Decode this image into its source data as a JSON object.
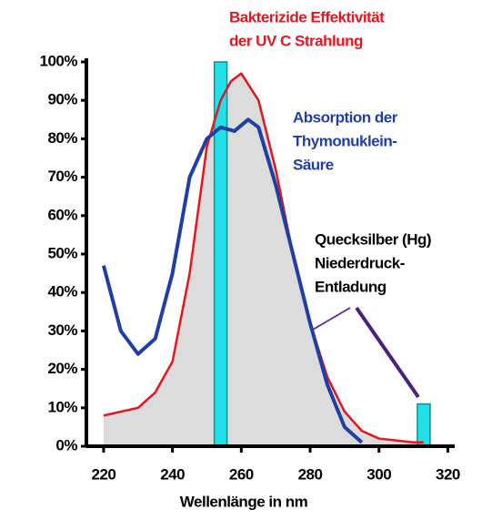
{
  "chart_data": {
    "type": "line",
    "xlabel": "Wellenlänge in nm",
    "xlim": [
      215,
      322
    ],
    "xticks": [
      220,
      240,
      260,
      280,
      300,
      320
    ],
    "ylim": [
      0,
      100
    ],
    "yticks": [
      {
        "value": 0,
        "label": "0%"
      },
      {
        "value": 10,
        "label": "10%"
      },
      {
        "value": 20,
        "label": "20%"
      },
      {
        "value": 30,
        "label": "30%"
      },
      {
        "value": 40,
        "label": "40%"
      },
      {
        "value": 50,
        "label": "50%"
      },
      {
        "value": 60,
        "label": "60%"
      },
      {
        "value": 70,
        "label": "70%"
      },
      {
        "value": 80,
        "label": "80%"
      },
      {
        "value": 90,
        "label": "90%"
      },
      {
        "value": 100,
        "label": "100%"
      }
    ],
    "series": [
      {
        "name": [
          "Bakterizide Effektivität",
          "der UV C Strahlung"
        ],
        "color": "#e8141e",
        "fill": "#dcdcdc",
        "x": [
          220,
          230,
          235,
          240,
          245,
          250,
          254,
          257,
          260,
          265,
          270,
          275,
          280,
          285,
          290,
          295,
          300,
          310,
          313
        ],
        "values": [
          8,
          10,
          14,
          22,
          45,
          78,
          90,
          95,
          97,
          90,
          72,
          50,
          32,
          18,
          9,
          4,
          2,
          1,
          1
        ]
      },
      {
        "name": [
          "Absorption der",
          "Thymonuklein-",
          "Säure"
        ],
        "color": "#1f3fa6",
        "x": [
          220,
          225,
          230,
          235,
          240,
          245,
          250,
          254,
          258,
          262,
          265,
          270,
          275,
          280,
          285,
          290,
          295
        ],
        "values": [
          47,
          30,
          24,
          28,
          45,
          70,
          80,
          83,
          82,
          85,
          83,
          68,
          50,
          32,
          16,
          5,
          1
        ]
      }
    ],
    "bars": {
      "name": [
        "Quecksilber (Hg)",
        "Niederdruck-",
        "Entladung"
      ],
      "color": "#22e0e8",
      "x": [
        254,
        313
      ],
      "values": [
        100,
        11
      ]
    }
  }
}
